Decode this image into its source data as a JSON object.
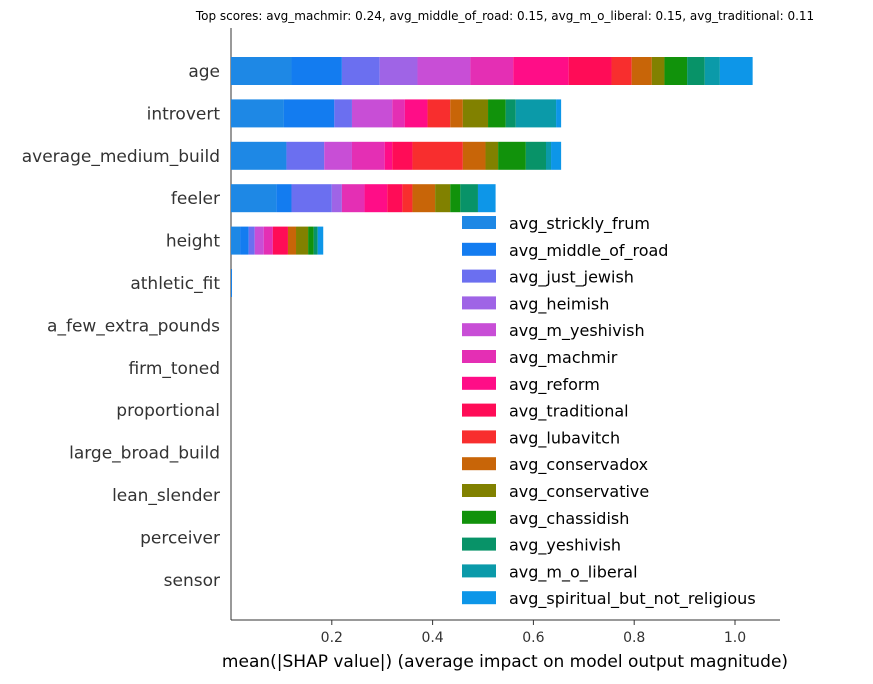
{
  "chart_data": {
    "type": "bar",
    "orientation": "horizontal",
    "stacked": true,
    "title": "Top scores: avg_machmir: 0.24, avg_middle_of_road: 0.15, avg_m_o_liberal: 0.15, avg_traditional: 0.11",
    "xlabel": "mean(|SHAP value|) (average impact on model output magnitude)",
    "ylabel": "",
    "xlim": [
      0,
      1.08
    ],
    "xticks": [
      0.2,
      0.4,
      0.6,
      0.8,
      1.0
    ],
    "xtick_labels": [
      "0.2",
      "0.4",
      "0.6",
      "0.8",
      "1.0"
    ],
    "grid": false,
    "legend_position": "right",
    "categories": [
      "age",
      "introvert",
      "average_medium_build",
      "feeler",
      "height",
      "athletic_fit",
      "a_few_extra_pounds",
      "firm_toned",
      "proportional",
      "large_broad_build",
      "lean_slender",
      "perceiver",
      "sensor"
    ],
    "series": [
      {
        "name": "avg_strickly_frum",
        "color": "#1e88e5",
        "values": [
          0.12,
          0.105,
          0.11,
          0.09,
          0.018,
          0.001,
          0,
          0,
          0,
          0,
          0,
          0,
          0
        ]
      },
      {
        "name": "avg_middle_of_road",
        "color": "#137cf0",
        "values": [
          0.1,
          0.1,
          0.0,
          0.03,
          0.017,
          0.0005,
          0,
          0,
          0,
          0,
          0,
          0,
          0
        ]
      },
      {
        "name": "avg_just_jewish",
        "color": "#6b6ff0",
        "values": [
          0.075,
          0.035,
          0.075,
          0.08,
          0.012,
          0,
          0,
          0,
          0,
          0,
          0,
          0,
          0
        ]
      },
      {
        "name": "avg_heimish",
        "color": "#9f64e6",
        "values": [
          0.075,
          0.0,
          0.0,
          0.02,
          0.0,
          0,
          0,
          0,
          0,
          0,
          0,
          0,
          0
        ]
      },
      {
        "name": "avg_m_yeshivish",
        "color": "#c84ed6",
        "values": [
          0.105,
          0.08,
          0.055,
          0.0,
          0.018,
          0,
          0,
          0,
          0,
          0,
          0,
          0,
          0
        ]
      },
      {
        "name": "avg_machmir",
        "color": "#e42fb4",
        "values": [
          0.085,
          0.025,
          0.065,
          0.045,
          0.018,
          0,
          0,
          0,
          0,
          0,
          0,
          0,
          0
        ]
      },
      {
        "name": "avg_reform",
        "color": "#ff0d87",
        "values": [
          0.11,
          0.045,
          0.015,
          0.045,
          0.0,
          0,
          0,
          0,
          0,
          0,
          0,
          0,
          0
        ]
      },
      {
        "name": "avg_traditional",
        "color": "#ff0c57",
        "values": [
          0.085,
          0.0,
          0.04,
          0.03,
          0.03,
          0,
          0,
          0,
          0,
          0,
          0,
          0,
          0
        ]
      },
      {
        "name": "avg_lubavitch",
        "color": "#f82e2e",
        "values": [
          0.04,
          0.045,
          0.1,
          0.02,
          0.0,
          0,
          0,
          0,
          0,
          0,
          0,
          0,
          0
        ]
      },
      {
        "name": "avg_conservadox",
        "color": "#c86508",
        "values": [
          0.04,
          0.025,
          0.045,
          0.045,
          0.016,
          0,
          0,
          0,
          0,
          0,
          0,
          0,
          0
        ]
      },
      {
        "name": "avg_conservative",
        "color": "#818100",
        "values": [
          0.025,
          0.05,
          0.025,
          0.03,
          0.024,
          0,
          0,
          0,
          0,
          0,
          0,
          0,
          0
        ]
      },
      {
        "name": "avg_chassidish",
        "color": "#11920b",
        "values": [
          0.045,
          0.035,
          0.055,
          0.02,
          0.011,
          0,
          0,
          0,
          0,
          0,
          0,
          0,
          0
        ]
      },
      {
        "name": "avg_yeshivish",
        "color": "#089368",
        "values": [
          0.035,
          0.02,
          0.04,
          0.035,
          0.008,
          0,
          0,
          0,
          0,
          0,
          0,
          0,
          0
        ]
      },
      {
        "name": "avg_m_o_liberal",
        "color": "#0b9aa9",
        "values": [
          0.03,
          0.08,
          0.01,
          0.0,
          0.0,
          0,
          0,
          0,
          0,
          0,
          0,
          0,
          0
        ]
      },
      {
        "name": "avg_spiritual_but_not_religious",
        "color": "#0d96e8",
        "values": [
          0.065,
          0.01,
          0.02,
          0.035,
          0.011,
          0,
          0,
          0,
          0,
          0,
          0,
          0,
          0
        ]
      }
    ]
  }
}
